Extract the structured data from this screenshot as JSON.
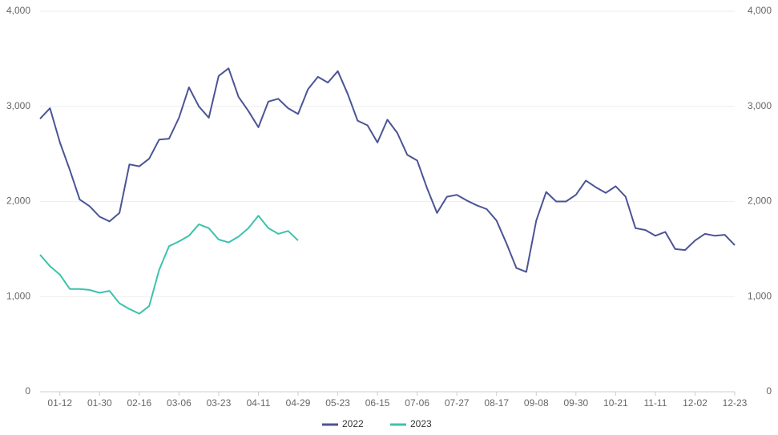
{
  "chart_data": {
    "type": "line",
    "categories": [
      null,
      null,
      "01-12",
      null,
      null,
      null,
      "01-30",
      null,
      null,
      null,
      "02-16",
      null,
      null,
      null,
      "03-06",
      null,
      null,
      null,
      "03-23",
      null,
      null,
      null,
      "04-11",
      null,
      null,
      null,
      "04-29",
      null,
      null,
      null,
      "05-23",
      null,
      null,
      null,
      "06-15",
      null,
      null,
      null,
      "07-06",
      null,
      null,
      null,
      "07-27",
      null,
      null,
      null,
      "08-17",
      null,
      null,
      null,
      "09-08",
      null,
      null,
      null,
      "09-30",
      null,
      null,
      null,
      "10-21",
      null,
      null,
      null,
      "11-11",
      null,
      null,
      null,
      "12-02",
      null,
      null,
      null,
      "12-23"
    ],
    "series": [
      {
        "name": "2022",
        "color": "#4b5495",
        "values": [
          2870,
          2980,
          2620,
          2330,
          2020,
          1950,
          1840,
          1790,
          1880,
          2390,
          2370,
          2450,
          2650,
          2660,
          2880,
          3200,
          3000,
          2880,
          3320,
          3400,
          3100,
          2950,
          2780,
          3050,
          3080,
          2980,
          2920,
          3180,
          3310,
          3250,
          3370,
          3130,
          2850,
          2800,
          2620,
          2860,
          2720,
          2490,
          2430,
          2140,
          1880,
          2050,
          2070,
          2010,
          1960,
          1920,
          1800,
          1560,
          1300,
          1260,
          1800,
          2100,
          2000,
          2000,
          2070,
          2220,
          2150,
          2090,
          2160,
          2050,
          1720,
          1700,
          1640,
          1680,
          1500,
          1490,
          1590,
          1660,
          1640,
          1650,
          1540
        ]
      },
      {
        "name": "2023",
        "color": "#3cc2ad",
        "values": [
          1440,
          1320,
          1230,
          1080,
          1080,
          1070,
          1040,
          1060,
          930,
          870,
          820,
          900,
          1280,
          1530,
          1580,
          1640,
          1760,
          1720,
          1600,
          1570,
          1630,
          1720,
          1850,
          1720,
          1660,
          1690,
          1590,
          null,
          null,
          null,
          null,
          null,
          null,
          null,
          null,
          null,
          null,
          null,
          null,
          null,
          null,
          null,
          null,
          null,
          null,
          null,
          null,
          null,
          null,
          null,
          null,
          null,
          null,
          null,
          null,
          null,
          null,
          null,
          null,
          null,
          null,
          null,
          null,
          null,
          null,
          null,
          null,
          null,
          null,
          null,
          null
        ]
      }
    ],
    "ylim": [
      0,
      4000
    ],
    "yticks": [
      0,
      {
        "value": 1000,
        "label": "1,000"
      },
      {
        "value": 2000,
        "label": "2,000"
      },
      {
        "value": 3000,
        "label": "3,000"
      },
      {
        "value": 4000,
        "label": "4,000"
      }
    ],
    "y2lim": [
      0,
      4000
    ],
    "y2ticks": [
      0,
      {
        "value": 1000,
        "label": "1,000"
      },
      {
        "value": 2000,
        "label": "2,000"
      },
      {
        "value": 3000,
        "label": "3,000"
      },
      {
        "value": 4000,
        "label": "4,000"
      }
    ],
    "grid": true,
    "legend": "bottom"
  }
}
